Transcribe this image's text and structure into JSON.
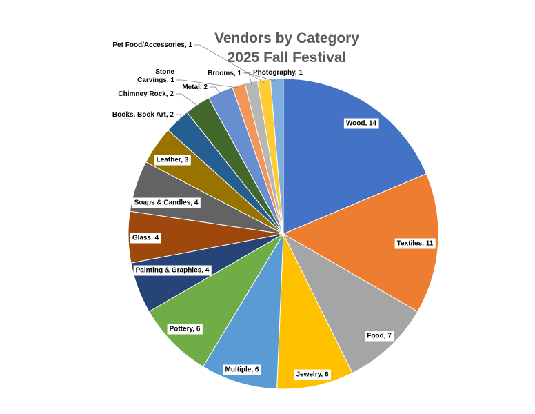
{
  "chart_data": {
    "type": "pie",
    "title": [
      "Vendors by Category",
      "2025 Fall Festival"
    ],
    "slices": [
      {
        "label": "Wood, 14",
        "category": "Wood",
        "value": 14,
        "color": "#4472C4"
      },
      {
        "label": "Textiles, 11",
        "category": "Textiles",
        "value": 11,
        "color": "#ED7D31"
      },
      {
        "label": "Food, 7",
        "category": "Food",
        "value": 7,
        "color": "#A5A5A5"
      },
      {
        "label": "Jewelry, 6",
        "category": "Jewelry",
        "value": 6,
        "color": "#FFC000"
      },
      {
        "label": "Multiple, 6",
        "category": "Multiple",
        "value": 6,
        "color": "#5B9BD5"
      },
      {
        "label": "Pottery, 6",
        "category": "Pottery",
        "value": 6,
        "color": "#70AD47"
      },
      {
        "label": "Painting & Graphics, 4",
        "category": "Painting & Graphics",
        "value": 4,
        "color": "#264478"
      },
      {
        "label": "Glass, 4",
        "category": "Glass",
        "value": 4,
        "color": "#9E480E"
      },
      {
        "label": "Soaps & Candles, 4",
        "category": "Soaps & Candles",
        "value": 4,
        "color": "#636363"
      },
      {
        "label": "Leather, 3",
        "category": "Leather",
        "value": 3,
        "color": "#997300"
      },
      {
        "label": "Books, Book Art, 2",
        "category": "Books, Book Art",
        "value": 2,
        "color": "#255E91"
      },
      {
        "label": "Chimney Rock, 2",
        "category": "Chimney Rock",
        "value": 2,
        "color": "#43682B"
      },
      {
        "label": "Metal, 2",
        "category": "Metal",
        "value": 2,
        "color": "#698ED0"
      },
      {
        "label": "Stone Carvings, 1",
        "category": "Stone Carvings",
        "value": 1,
        "color": "#F1975A"
      },
      {
        "label": "Brooms, 1",
        "category": "Brooms",
        "value": 1,
        "color": "#B7B7B7"
      },
      {
        "label": "Pet Food/Accessories, 1",
        "category": "Pet Food/Accessories",
        "value": 1,
        "color": "#FFCD33"
      },
      {
        "label": "Photography, 1",
        "category": "Photography",
        "value": 1,
        "color": "#7CAFDD"
      }
    ]
  }
}
